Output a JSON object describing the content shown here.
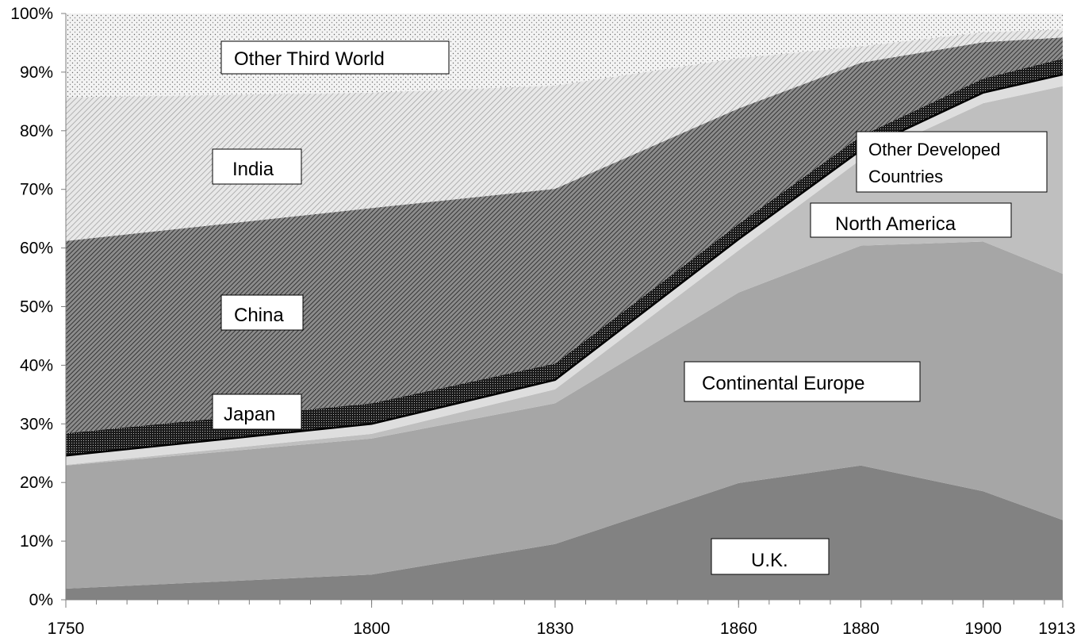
{
  "chart_data": {
    "type": "area",
    "stacked": true,
    "normalized_percent": true,
    "title": "",
    "xlabel": "",
    "ylabel": "",
    "x": [
      1750,
      1800,
      1830,
      1860,
      1880,
      1900,
      1913
    ],
    "x_tick_labels": [
      "1750",
      "1800",
      "1830",
      "1860",
      "1880",
      "1900",
      "1913"
    ],
    "ylim": [
      0,
      100
    ],
    "y_ticks": [
      0,
      10,
      20,
      30,
      40,
      50,
      60,
      70,
      80,
      90,
      100
    ],
    "y_tick_labels": [
      "0%",
      "10%",
      "20%",
      "30%",
      "40%",
      "50%",
      "60%",
      "70%",
      "80%",
      "90%",
      "100%"
    ],
    "grid": false,
    "legend": "none (series labelled inline with boxes)",
    "series": [
      {
        "name": "U.K.",
        "values": [
          1.9,
          4.3,
          9.5,
          19.9,
          22.9,
          18.5,
          13.6
        ],
        "fill": "#828282"
      },
      {
        "name": "Continental Europe",
        "values": [
          21.0,
          23.2,
          24.0,
          32.5,
          37.5,
          42.6,
          42.0
        ],
        "fill": "#a6a6a6"
      },
      {
        "name": "North America",
        "values": [
          0.1,
          0.8,
          2.4,
          7.2,
          14.7,
          23.6,
          32.0
        ],
        "fill": "#bfbfbf"
      },
      {
        "name": "Other Developed Countries",
        "values": [
          1.6,
          1.7,
          1.6,
          1.9,
          1.6,
          1.8,
          2.0
        ],
        "fill": "#dedede"
      },
      {
        "name": "Japan",
        "values": [
          3.8,
          3.5,
          2.8,
          2.6,
          2.4,
          2.4,
          2.7
        ],
        "fill": "#303030"
      },
      {
        "name": "China",
        "values": [
          32.8,
          33.3,
          29.8,
          19.7,
          12.5,
          6.2,
          3.6
        ],
        "fill": "#555555"
      },
      {
        "name": "India",
        "values": [
          24.5,
          19.7,
          17.6,
          8.6,
          2.8,
          1.7,
          1.4
        ],
        "fill": "#bcbcbc"
      },
      {
        "name": "Other Third World",
        "values": [
          14.3,
          13.5,
          12.3,
          7.6,
          5.6,
          3.2,
          2.7
        ],
        "fill": "#eeeeee"
      }
    ],
    "labels": {
      "uk": "U.K.",
      "continental_europe": "Continental Europe",
      "north_america": "North America",
      "other_developed_line1": "Other Developed",
      "other_developed_line2": "Countries",
      "japan": "Japan",
      "china": "China",
      "india": "India",
      "other_third_world": "Other Third World"
    }
  }
}
